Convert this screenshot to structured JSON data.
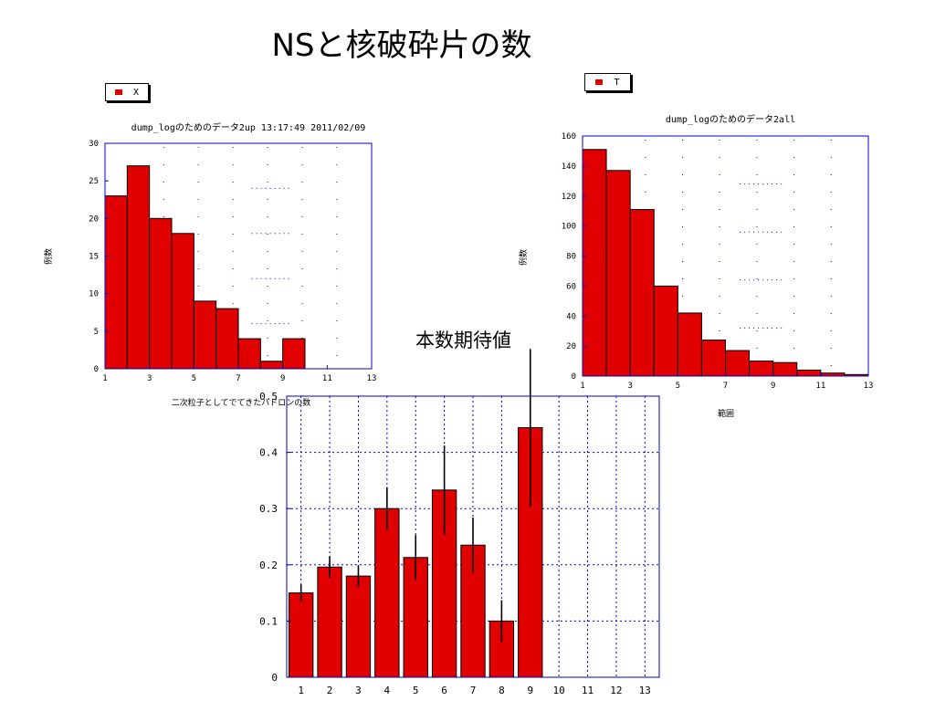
{
  "slide": {
    "title": "NSと核破砕片の数",
    "expect_label": "本数期待値"
  },
  "colors": {
    "bar": "#e00000",
    "axis": "#0000cc",
    "grid": "#0000cc"
  },
  "chart_data": [
    {
      "type": "bar",
      "title": "dump_logのためのデータ2up 13:17:49  2011/02/09",
      "xlabel": "二次粒子としてでてきたハドロンの数",
      "ylabel": "例数",
      "legend": "X",
      "x": [
        1,
        2,
        3,
        4,
        5,
        6,
        7,
        8,
        9,
        10,
        11,
        12
      ],
      "values": [
        23,
        27,
        20,
        18,
        9,
        8,
        4,
        1,
        4,
        0,
        0,
        0
      ],
      "xlim": [
        1,
        13
      ],
      "ylim": [
        0,
        30
      ],
      "xticks": [
        1,
        3,
        5,
        7,
        9,
        11,
        13
      ],
      "yticks": [
        0,
        5,
        10,
        15,
        20,
        25,
        30
      ]
    },
    {
      "type": "bar",
      "title": "dump_logのためのデータ2all",
      "xlabel": "範囲",
      "ylabel": "例数",
      "legend": "T",
      "x": [
        1,
        2,
        3,
        4,
        5,
        6,
        7,
        8,
        9,
        10,
        11,
        12
      ],
      "values": [
        151,
        137,
        111,
        60,
        42,
        24,
        17,
        10,
        9,
        4,
        2,
        1
      ],
      "xlim": [
        1,
        13
      ],
      "ylim": [
        0,
        160
      ],
      "xticks": [
        1,
        3,
        5,
        7,
        9,
        11,
        13
      ],
      "yticks": [
        0,
        20,
        40,
        60,
        80,
        100,
        120,
        140,
        160
      ]
    },
    {
      "type": "bar",
      "x": [
        1,
        2,
        3,
        4,
        5,
        6,
        7,
        8,
        9,
        10,
        11,
        12,
        13
      ],
      "values": [
        0.15,
        0.196,
        0.18,
        0.3,
        0.213,
        0.333,
        0.235,
        0.1,
        0.444,
        null,
        null,
        null,
        null
      ],
      "errors": [
        0.015,
        0.019,
        0.019,
        0.038,
        0.04,
        0.079,
        0.049,
        0.037,
        0.14,
        null,
        null,
        null,
        null
      ],
      "ylim": [
        0,
        0.5
      ],
      "yticks": [
        "0",
        "0.1",
        "0.2",
        "0.3",
        "0.4",
        "0.5"
      ],
      "xticks": [
        "1",
        "2",
        "3",
        "4",
        "5",
        "6",
        "7",
        "8",
        "9",
        "10",
        "11",
        "12",
        "13"
      ]
    }
  ]
}
